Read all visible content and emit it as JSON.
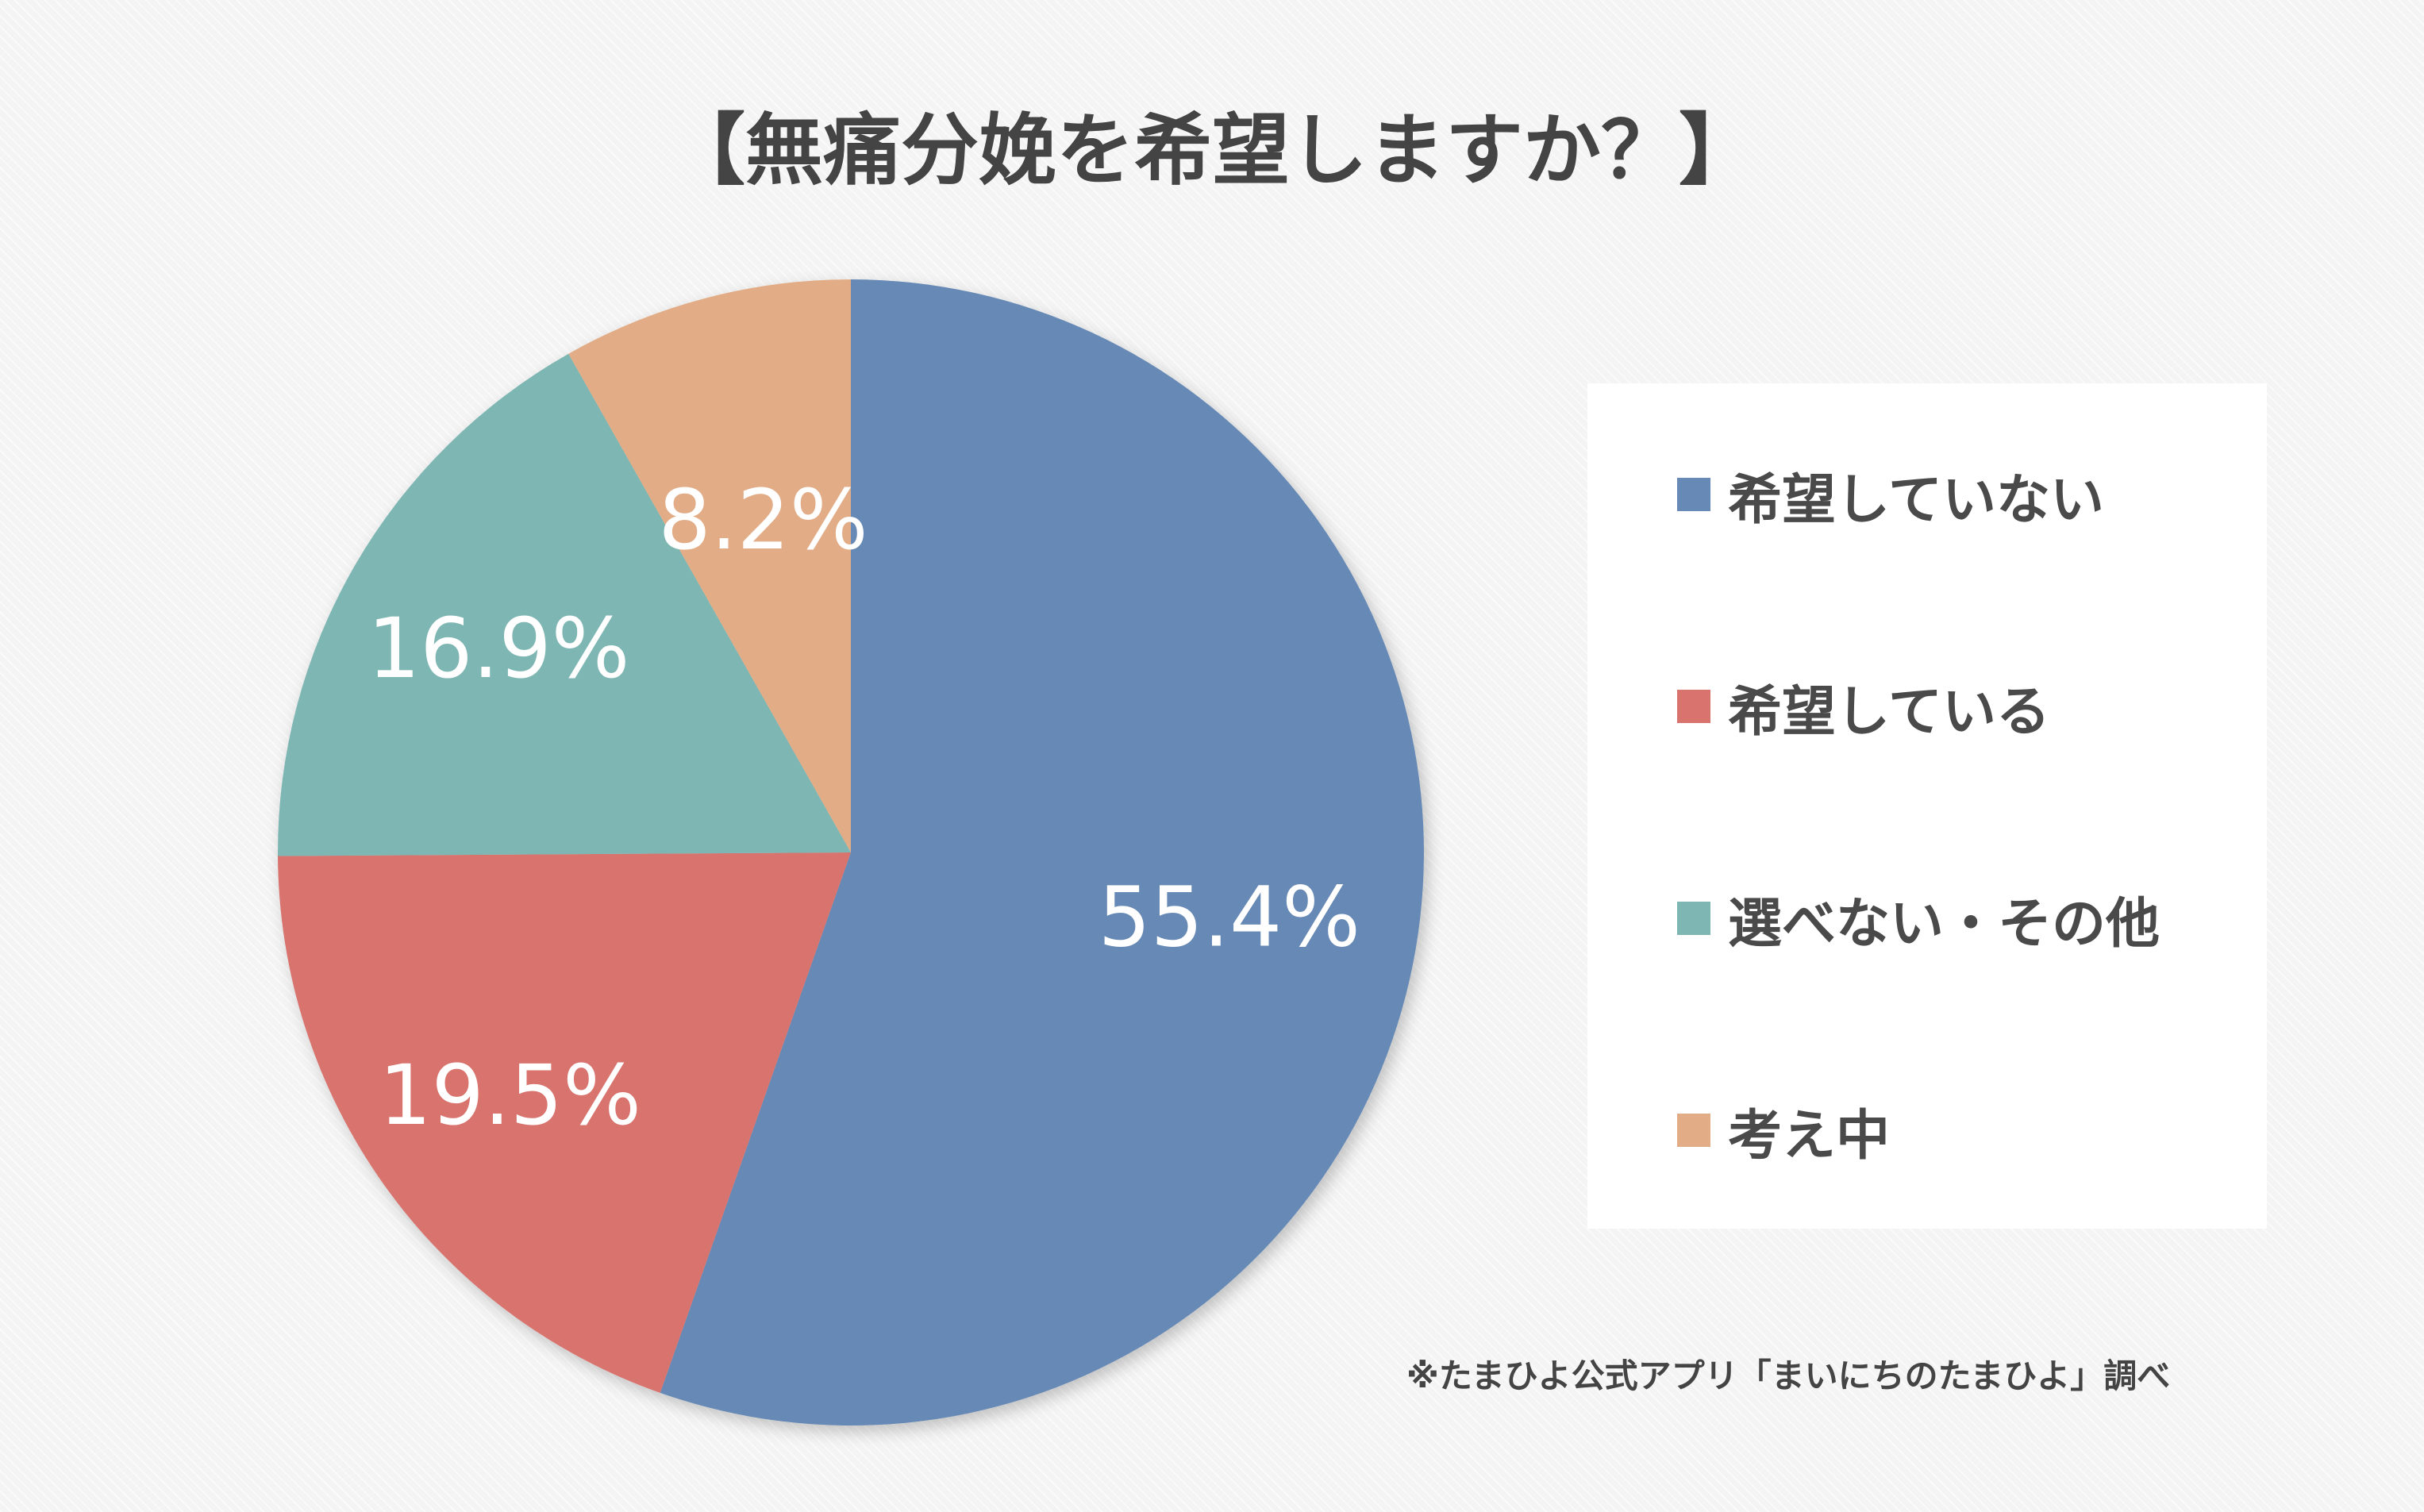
{
  "chart_data": {
    "type": "pie",
    "title": "【無痛分娩を希望しますか？】",
    "slices": [
      {
        "label": "希望していない",
        "value": 55.4,
        "value_label": "55.4%",
        "color": "#6689b5"
      },
      {
        "label": "希望している",
        "value": 19.5,
        "value_label": "19.5%",
        "color": "#d8736e"
      },
      {
        "label": "選べない・その他",
        "value": 16.9,
        "value_label": "16.9%",
        "color": "#7db6b3"
      },
      {
        "label": "考え中",
        "value": 8.2,
        "value_label": "8.2%",
        "color": "#e2ad86"
      }
    ],
    "start_angle": "12 o'clock",
    "direction": "clockwise",
    "legend_position": "right"
  },
  "footnote": "※たまひよ公式アプリ「まいにちのたまひよ」調べ"
}
